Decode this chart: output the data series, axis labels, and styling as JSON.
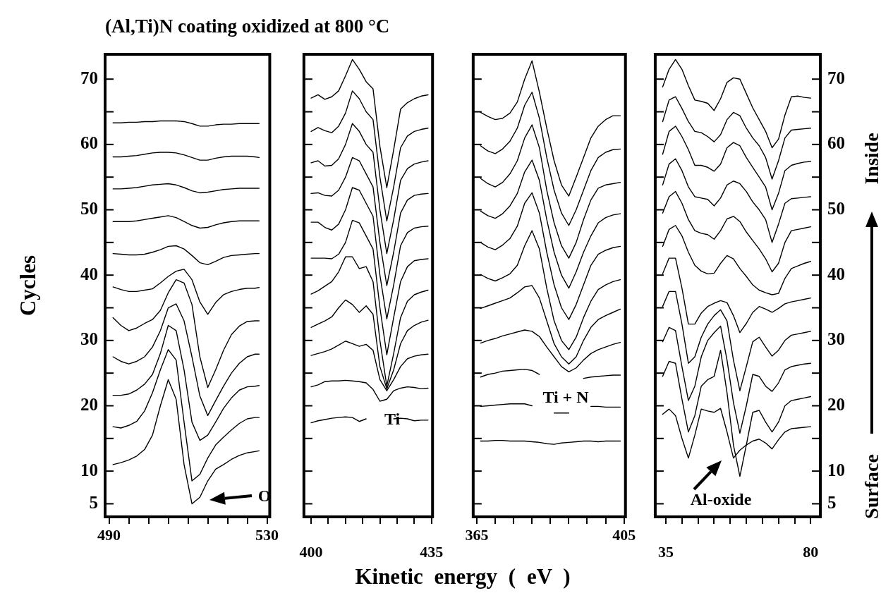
{
  "chart_data": [
    {
      "type": "line",
      "title": "(Al,Ti)N coating oxidized at 800 °C",
      "ylabel": "Cycles",
      "xlabel": "Kinetic energy ( eV )",
      "marker": "none",
      "x": [
        491,
        493,
        495,
        497,
        499,
        501,
        503,
        505,
        507,
        509,
        511,
        513,
        515,
        517,
        519,
        521,
        523,
        525,
        527,
        528
      ],
      "xlim": [
        489,
        530.7
      ],
      "xticks": [
        490,
        {
          "value": 495,
          "label": null
        },
        {
          "value": 500,
          "label": null
        },
        {
          "value": 505,
          "label": null
        },
        {
          "value": 510,
          "label": null
        },
        {
          "value": 515,
          "label": null
        },
        {
          "value": 520,
          "label": null
        },
        {
          "value": 525,
          "label": null
        },
        530
      ],
      "ylim": [
        3,
        73.8
      ],
      "yticks": [
        5,
        10,
        {
          "value": 15,
          "label": null
        },
        20,
        {
          "value": 25,
          "label": null
        },
        30,
        {
          "value": 35,
          "label": null
        },
        40,
        {
          "value": 45,
          "label": null
        },
        50,
        {
          "value": 55,
          "label": null
        },
        60,
        {
          "value": 65,
          "label": null
        },
        70
      ],
      "series": [
        {
          "color": "#000000",
          "values": [
            63.3,
            63.3,
            63.4,
            63.4,
            63.5,
            63.5,
            63.6,
            63.6,
            63.6,
            63.5,
            63.2,
            62.8,
            62.8,
            63.0,
            63.1,
            63.1,
            63.2,
            63.2,
            63.2,
            63.2
          ]
        },
        {
          "color": "#000000",
          "values": [
            58.1,
            58.1,
            58.2,
            58.3,
            58.5,
            58.7,
            58.8,
            58.8,
            58.7,
            58.4,
            58.0,
            57.6,
            57.6,
            57.9,
            58.1,
            58.2,
            58.2,
            58.2,
            58.1,
            58.0
          ]
        },
        {
          "color": "#000000",
          "values": [
            53.2,
            53.2,
            53.3,
            53.4,
            53.6,
            53.8,
            53.9,
            54.0,
            53.8,
            53.4,
            52.9,
            52.6,
            52.7,
            52.9,
            53.1,
            53.2,
            53.3,
            53.3,
            53.3,
            53.3
          ]
        },
        {
          "color": "#000000",
          "values": [
            48.2,
            48.2,
            48.2,
            48.3,
            48.5,
            48.7,
            48.9,
            49.1,
            48.8,
            48.2,
            47.6,
            47.2,
            47.3,
            47.7,
            48.0,
            48.2,
            48.3,
            48.3,
            48.3,
            48.3
          ]
        },
        {
          "color": "#000000",
          "values": [
            43.3,
            43.2,
            43.1,
            43.1,
            43.2,
            43.5,
            43.9,
            44.4,
            44.5,
            44.0,
            43.0,
            41.9,
            41.6,
            42.1,
            42.7,
            43.0,
            43.1,
            43.2,
            43.3,
            43.3
          ]
        },
        {
          "color": "#000000",
          "values": [
            38.2,
            37.8,
            37.5,
            37.5,
            37.7,
            37.9,
            38.8,
            39.8,
            40.6,
            40.9,
            39.3,
            35.9,
            34.0,
            35.8,
            37.0,
            37.5,
            37.8,
            38.0,
            38.0,
            38.1
          ]
        },
        {
          "color": "#000000",
          "values": [
            33.5,
            32.3,
            31.5,
            31.9,
            32.6,
            33.2,
            34.6,
            37.3,
            39.3,
            38.8,
            35.5,
            27.5,
            22.8,
            25.5,
            28.5,
            30.9,
            32.2,
            32.9,
            33.0,
            33.0
          ]
        },
        {
          "color": "#000000",
          "values": [
            27.5,
            26.8,
            26.4,
            26.8,
            27.5,
            29.0,
            31.5,
            35.0,
            35.6,
            33.0,
            27.5,
            21.5,
            18.5,
            20.8,
            23.0,
            25.0,
            26.5,
            27.5,
            27.9,
            27.9
          ]
        },
        {
          "color": "#000000",
          "values": [
            21.6,
            21.6,
            21.8,
            22.4,
            23.3,
            24.8,
            28.0,
            32.3,
            31.5,
            25.5,
            17.5,
            14.7,
            15.5,
            17.5,
            19.6,
            21.2,
            22.4,
            22.9,
            23.0,
            23.1
          ]
        },
        {
          "color": "#000000",
          "values": [
            16.8,
            16.6,
            17.0,
            17.6,
            19.2,
            22.0,
            25.5,
            28.6,
            27.0,
            17.5,
            8.5,
            9.5,
            12.0,
            14.0,
            15.2,
            16.3,
            17.3,
            18.0,
            18.2,
            18.2
          ]
        },
        {
          "color": "#000000",
          "values": [
            11.0,
            11.3,
            11.7,
            12.3,
            13.3,
            15.5,
            20.0,
            24.0,
            21.0,
            11.0,
            5.0,
            6.0,
            8.5,
            10.3,
            11.0,
            11.8,
            12.4,
            12.8,
            13.0,
            13.1
          ]
        }
      ],
      "annotations": [
        "O"
      ]
    },
    {
      "type": "line",
      "marker": "none",
      "tick_labels": "x",
      "x": [
        400,
        402,
        404,
        406,
        408,
        410,
        412,
        414,
        416,
        418,
        420,
        422,
        424,
        426,
        428,
        430,
        432,
        434
      ],
      "xlim": [
        397.9,
        435.3
      ],
      "xticks": [
        400,
        {
          "value": 405,
          "label": null
        },
        {
          "value": 410,
          "label": null
        },
        {
          "value": 415,
          "label": null
        },
        {
          "value": 420,
          "label": null
        },
        {
          "value": 425,
          "label": null
        },
        {
          "value": 430,
          "label": null
        },
        435
      ],
      "ylim": [
        3,
        73.8
      ],
      "yticks": [
        5,
        10,
        15,
        20,
        25,
        30,
        35,
        40,
        45,
        50,
        55,
        60,
        65,
        70
      ],
      "series": [
        {
          "color": "#000000",
          "values": [
            67.1,
            67.6,
            66.9,
            67.3,
            68.2,
            70.5,
            73.0,
            71.5,
            69.6,
            68.5,
            59.7,
            53.4,
            59.2,
            65.4,
            66.4,
            67.0,
            67.4,
            67.6
          ]
        },
        {
          "color": "#000000",
          "values": [
            62.0,
            62.6,
            62.1,
            61.8,
            62.8,
            64.8,
            68.2,
            67.0,
            65.0,
            63.8,
            55.0,
            48.3,
            53.5,
            59.5,
            61.3,
            62.0,
            62.3,
            62.5
          ]
        },
        {
          "color": "#000000",
          "values": [
            57.2,
            57.5,
            56.7,
            56.8,
            57.8,
            60.0,
            63.2,
            62.0,
            60.0,
            58.8,
            50.0,
            43.3,
            48.5,
            54.5,
            56.3,
            57.0,
            57.3,
            57.5
          ]
        },
        {
          "color": "#000000",
          "values": [
            52.5,
            52.6,
            52.2,
            52.1,
            53.0,
            55.0,
            58.0,
            57.5,
            55.5,
            53.5,
            45.0,
            38.4,
            43.5,
            49.5,
            51.5,
            52.2,
            52.4,
            52.5
          ]
        },
        {
          "color": "#000000",
          "values": [
            48.1,
            48.1,
            47.3,
            46.9,
            47.8,
            50.0,
            53.4,
            53.0,
            51.0,
            49.0,
            40.0,
            33.3,
            38.5,
            44.5,
            46.5,
            47.2,
            47.4,
            47.5
          ]
        },
        {
          "color": "#000000",
          "values": [
            42.6,
            42.6,
            42.6,
            42.5,
            43.2,
            45.0,
            48.4,
            48.0,
            46.0,
            44.0,
            35.0,
            27.8,
            33.5,
            39.0,
            41.3,
            42.2,
            42.4,
            42.5
          ]
        },
        {
          "color": "#000000",
          "values": [
            37.1,
            37.6,
            38.3,
            39.0,
            40.5,
            42.8,
            42.8,
            41.0,
            41.3,
            39.0,
            30.0,
            23.0,
            28.0,
            33.5,
            36.0,
            37.0,
            37.4,
            37.7
          ]
        },
        {
          "color": "#000000",
          "values": [
            32.0,
            32.5,
            33.0,
            33.6,
            35.0,
            36.2,
            35.5,
            34.3,
            35.3,
            34.0,
            26.0,
            22.6,
            25.5,
            29.5,
            31.5,
            32.3,
            32.8,
            33.1
          ]
        },
        {
          "color": "#000000",
          "values": [
            27.7,
            28.0,
            28.3,
            28.7,
            29.3,
            29.9,
            29.5,
            29.1,
            29.4,
            28.5,
            24.0,
            22.3,
            24.0,
            26.0,
            27.2,
            27.6,
            27.8,
            27.9
          ]
        },
        {
          "color": "#000000",
          "values": [
            22.9,
            23.2,
            23.7,
            23.8,
            23.8,
            23.9,
            23.8,
            23.7,
            23.5,
            22.5,
            20.7,
            21.0,
            22.3,
            22.7,
            22.9,
            22.8,
            22.6,
            22.7
          ]
        },
        {
          "color": "#000000",
          "values": [
            17.4,
            17.7,
            17.9,
            18.1,
            18.2,
            18.3,
            18.2,
            17.6,
            18.0,
            null,
            null,
            null,
            18.0,
            18.1,
            18.0,
            17.7,
            17.8,
            17.8
          ]
        }
      ],
      "annotations": [
        "Ti"
      ]
    },
    {
      "type": "line",
      "marker": "none",
      "tick_labels": "x",
      "x": [
        366,
        368,
        370,
        372,
        374,
        376,
        378,
        380,
        382,
        384,
        386,
        388,
        390,
        392,
        394,
        396,
        398,
        400,
        402,
        404
      ],
      "xlim": [
        364,
        405.4
      ],
      "xticks": [
        365,
        {
          "value": 370,
          "label": null
        },
        {
          "value": 375,
          "label": null
        },
        {
          "value": 380,
          "label": null
        },
        {
          "value": 385,
          "label": null
        },
        {
          "value": 390,
          "label": null
        },
        {
          "value": 395,
          "label": null
        },
        {
          "value": 400,
          "label": null
        },
        405
      ],
      "ylim": [
        3,
        73.8
      ],
      "yticks": [
        5,
        10,
        15,
        20,
        25,
        30,
        35,
        40,
        45,
        50,
        55,
        60,
        65,
        70
      ],
      "series": [
        {
          "color": "#000000",
          "values": [
            64.9,
            64.3,
            63.8,
            64.0,
            64.8,
            66.5,
            70.0,
            72.8,
            68.0,
            62.5,
            57.5,
            53.8,
            52.1,
            55.0,
            58.0,
            61.0,
            62.8,
            63.8,
            64.4,
            64.4
          ]
        },
        {
          "color": "#000000",
          "values": [
            59.8,
            59.0,
            58.6,
            59.3,
            60.5,
            62.5,
            66.0,
            68.0,
            64.0,
            58.0,
            53.0,
            49.5,
            47.6,
            50.0,
            53.0,
            56.0,
            58.0,
            58.8,
            59.2,
            59.3
          ]
        },
        {
          "color": "#000000",
          "values": [
            54.8,
            54.0,
            53.5,
            54.2,
            55.5,
            57.5,
            61.0,
            63.0,
            59.5,
            53.0,
            48.0,
            44.5,
            42.6,
            45.0,
            48.5,
            51.5,
            53.3,
            53.8,
            54.0,
            54.2
          ]
        },
        {
          "color": "#000000",
          "values": [
            49.8,
            49.1,
            48.7,
            49.4,
            50.6,
            52.5,
            55.8,
            57.6,
            54.5,
            48.5,
            43.5,
            40.0,
            38.0,
            40.5,
            43.5,
            46.0,
            48.0,
            48.8,
            49.2,
            49.4
          ]
        },
        {
          "color": "#000000",
          "values": [
            45.0,
            44.3,
            43.9,
            44.6,
            45.6,
            47.5,
            51.0,
            52.6,
            49.5,
            43.5,
            38.5,
            35.0,
            33.2,
            35.5,
            38.5,
            41.5,
            43.2,
            43.8,
            44.2,
            44.4
          ]
        },
        {
          "color": "#000000",
          "values": [
            40.1,
            39.5,
            39.1,
            39.6,
            40.2,
            41.5,
            44.5,
            46.8,
            44.0,
            38.0,
            33.0,
            30.0,
            28.6,
            30.5,
            33.5,
            36.0,
            37.8,
            38.5,
            39.0,
            39.3
          ]
        },
        {
          "color": "#000000",
          "values": [
            34.9,
            35.3,
            35.7,
            36.1,
            36.5,
            37.3,
            38.2,
            38.4,
            36.5,
            33.0,
            29.5,
            27.5,
            26.4,
            27.5,
            30.0,
            32.0,
            33.2,
            33.8,
            34.3,
            34.8
          ]
        },
        {
          "color": "#000000",
          "values": [
            29.6,
            30.0,
            30.3,
            30.7,
            31.0,
            31.3,
            31.6,
            31.4,
            30.6,
            29.0,
            27.5,
            26.0,
            25.2,
            25.8,
            27.0,
            28.0,
            28.6,
            29.0,
            29.4,
            29.7
          ]
        },
        {
          "color": "#000000",
          "values": [
            24.4,
            24.8,
            25.0,
            25.3,
            25.4,
            25.5,
            25.6,
            25.4,
            24.8,
            null,
            null,
            null,
            null,
            null,
            24.2,
            24.4,
            24.5,
            24.6,
            24.7,
            24.7
          ]
        },
        {
          "color": "#000000",
          "values": [
            19.9,
            20.0,
            20.1,
            20.2,
            20.3,
            20.3,
            20.3,
            20.0,
            null,
            null,
            18.9,
            18.9,
            18.9,
            null,
            null,
            19.9,
            19.9,
            19.8,
            19.8,
            19.8
          ]
        },
        {
          "color": "#000000",
          "values": [
            14.6,
            14.6,
            14.7,
            14.7,
            14.6,
            14.6,
            14.6,
            14.5,
            14.4,
            14.2,
            14.1,
            14.3,
            14.4,
            14.5,
            14.6,
            14.6,
            14.5,
            14.6,
            14.6,
            14.6
          ]
        }
      ],
      "annotations": [
        "Ti + N"
      ]
    },
    {
      "type": "line",
      "marker": "none",
      "x": [
        34,
        36,
        38,
        40,
        42,
        44,
        46,
        48,
        50,
        52,
        54,
        56,
        58,
        60,
        62,
        64,
        66,
        68,
        70,
        72,
        74,
        76,
        78,
        80
      ],
      "xlim": [
        31.7,
        83
      ],
      "xticks": [
        35,
        {
          "value": 40,
          "label": null
        },
        {
          "value": 45,
          "label": null
        },
        {
          "value": 50,
          "label": null
        },
        {
          "value": 55,
          "label": null
        },
        {
          "value": 60,
          "label": null
        },
        {
          "value": 65,
          "label": null
        },
        {
          "value": 70,
          "label": null
        },
        {
          "value": 75,
          "label": null
        },
        80
      ],
      "y2lim": [
        3,
        73.8
      ],
      "y2ticks": [
        5,
        10,
        {
          "value": 15,
          "label": null
        },
        20,
        {
          "value": 25,
          "label": null
        },
        30,
        {
          "value": 35,
          "label": null
        },
        40,
        {
          "value": 45,
          "label": null
        },
        50,
        {
          "value": 55,
          "label": null
        },
        60,
        {
          "value": 65,
          "label": null
        },
        70
      ],
      "series": [
        {
          "color": "#000000",
          "axis": "y2",
          "values": [
            68.8,
            71.5,
            73.0,
            71.5,
            69.0,
            66.8,
            66.6,
            66.3,
            65.2,
            67.0,
            69.5,
            70.2,
            70.0,
            67.8,
            65.6,
            63.8,
            62.0,
            59.5,
            60.8,
            64.5,
            67.3,
            67.4,
            67.2,
            67.1
          ]
        },
        {
          "color": "#000000",
          "axis": "y2",
          "values": [
            63.5,
            66.8,
            67.3,
            65.5,
            63.5,
            62.0,
            61.8,
            61.2,
            60.4,
            61.5,
            63.8,
            64.9,
            64.4,
            62.5,
            61.0,
            59.8,
            58.0,
            54.7,
            57.5,
            61.0,
            62.2,
            62.3,
            62.4,
            62.5
          ]
        },
        {
          "color": "#000000",
          "axis": "y2",
          "values": [
            58.5,
            62.0,
            62.8,
            61.2,
            59.2,
            56.8,
            56.8,
            56.5,
            55.9,
            57.0,
            59.5,
            60.3,
            59.8,
            58.0,
            56.5,
            55.0,
            53.5,
            50.0,
            52.5,
            56.0,
            56.8,
            57.1,
            57.3,
            57.4
          ]
        },
        {
          "color": "#000000",
          "axis": "y2",
          "values": [
            53.8,
            57.0,
            57.8,
            56.0,
            53.5,
            52.0,
            51.8,
            51.6,
            50.6,
            51.8,
            53.8,
            54.4,
            54.0,
            52.8,
            51.2,
            50.0,
            48.5,
            45.0,
            47.8,
            51.0,
            51.7,
            51.8,
            51.9,
            52.0
          ]
        },
        {
          "color": "#000000",
          "axis": "y2",
          "values": [
            49.5,
            52.0,
            52.8,
            51.0,
            48.5,
            46.8,
            46.4,
            46.2,
            45.5,
            46.8,
            48.6,
            49.0,
            48.2,
            46.6,
            45.3,
            44.0,
            42.5,
            40.5,
            41.8,
            45.0,
            46.8,
            47.0,
            47.2,
            47.4
          ]
        },
        {
          "color": "#000000",
          "axis": "y2",
          "values": [
            44.4,
            47.0,
            47.6,
            46.0,
            43.5,
            41.5,
            40.6,
            40.2,
            40.3,
            41.8,
            43.0,
            42.5,
            41.0,
            39.8,
            38.5,
            37.7,
            37.3,
            37.0,
            37.2,
            39.5,
            41.0,
            41.4,
            41.8,
            42.1
          ]
        },
        {
          "color": "#000000",
          "axis": "y2",
          "values": [
            40.2,
            42.6,
            42.6,
            38.0,
            32.5,
            32.5,
            34.2,
            35.2,
            35.7,
            36.1,
            35.8,
            33.8,
            31.2,
            32.6,
            34.3,
            35.2,
            34.8,
            34.3,
            34.9,
            35.6,
            35.9,
            36.1,
            36.3,
            36.5
          ]
        },
        {
          "color": "#000000",
          "axis": "y2",
          "values": [
            35.2,
            37.5,
            37.5,
            32.5,
            26.5,
            27.5,
            30.5,
            32.5,
            33.8,
            34.7,
            33.0,
            27.0,
            22.3,
            26.0,
            29.8,
            30.5,
            29.0,
            27.6,
            28.5,
            30.0,
            30.8,
            31.0,
            31.2,
            31.4
          ]
        },
        {
          "color": "#000000",
          "axis": "y2",
          "values": [
            29.8,
            32.0,
            31.5,
            26.0,
            20.8,
            23.0,
            27.5,
            30.0,
            31.2,
            32.2,
            27.0,
            20.5,
            15.8,
            20.0,
            24.8,
            24.5,
            23.0,
            22.2,
            23.5,
            25.5,
            26.0,
            26.2,
            26.4,
            26.5
          ]
        },
        {
          "color": "#000000",
          "axis": "y2",
          "values": [
            24.5,
            26.8,
            26.5,
            21.0,
            16.0,
            18.5,
            23.0,
            24.0,
            24.5,
            28.5,
            22.0,
            14.0,
            9.2,
            14.0,
            19.0,
            19.3,
            17.5,
            16.0,
            17.5,
            20.0,
            20.8,
            21.0,
            21.2,
            21.4
          ]
        },
        {
          "color": "#000000",
          "axis": "y2",
          "values": [
            18.7,
            19.5,
            18.5,
            15.0,
            12.0,
            15.5,
            19.5,
            19.2,
            19.0,
            19.6,
            16.0,
            12.0,
            13.2,
            14.0,
            14.6,
            14.9,
            14.3,
            13.4,
            14.8,
            16.0,
            16.5,
            16.6,
            16.7,
            16.8
          ]
        }
      ],
      "annotations": [
        "Al-oxide",
        "Inside",
        "Surface"
      ]
    }
  ]
}
